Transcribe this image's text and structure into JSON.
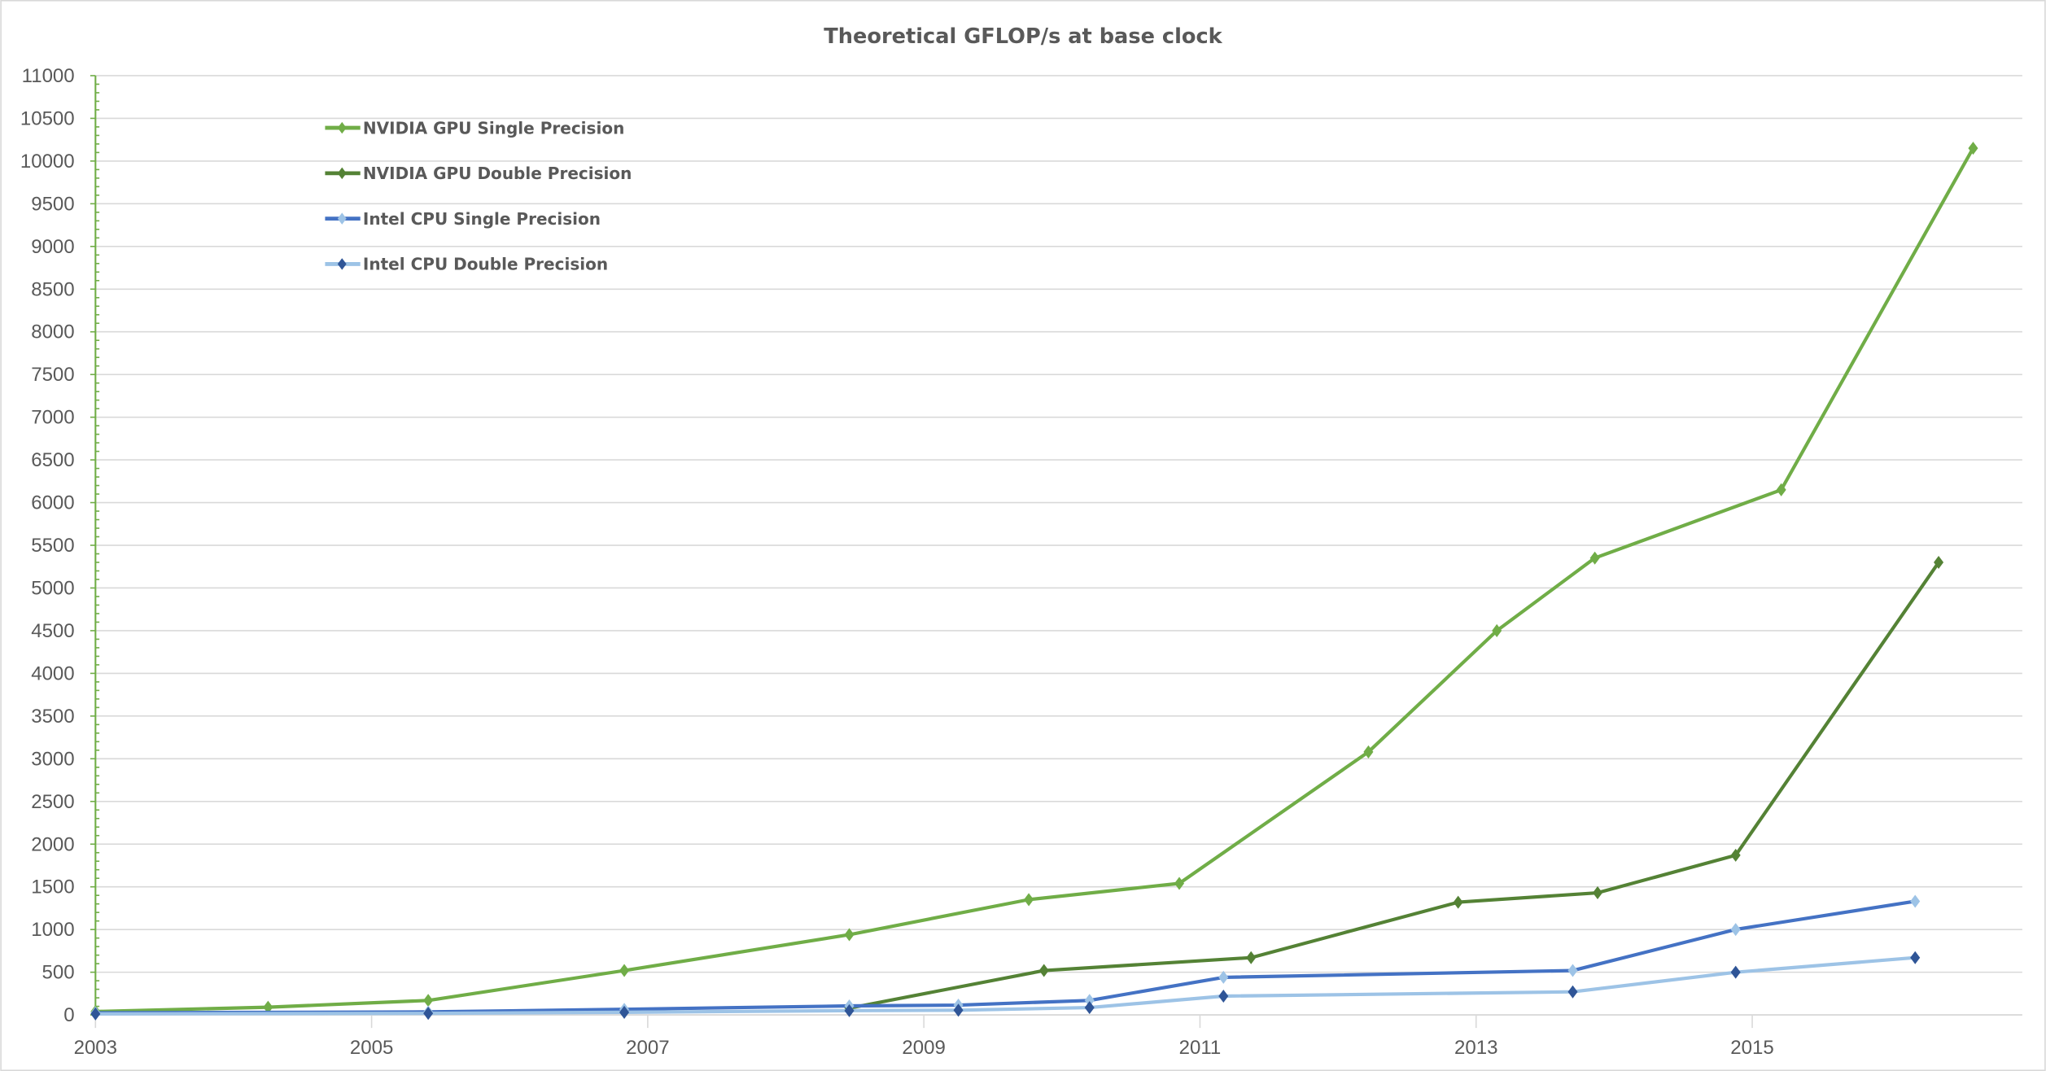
{
  "chart_data": {
    "type": "line",
    "title": "Theoretical GFLOP/s at base clock",
    "xlabel": "",
    "ylabel": "",
    "xlim": [
      2003,
      2016.9
    ],
    "ylim": [
      0,
      11000
    ],
    "x_ticks": [
      "2003",
      "2005",
      "2007",
      "2009",
      "2011",
      "2013",
      "2015"
    ],
    "y_ticks": [
      "0",
      "500",
      "1000",
      "1500",
      "2000",
      "2500",
      "3000",
      "3500",
      "4000",
      "4500",
      "5000",
      "5500",
      "6000",
      "6500",
      "7000",
      "7500",
      "8000",
      "8500",
      "9000",
      "9500",
      "10000",
      "10500",
      "11000"
    ],
    "grid": "horizontal",
    "legend": "top-left",
    "series": [
      {
        "name": "NVIDIA GPU Single Precision",
        "line_color": "#70ad47",
        "marker_color": "#70ad47",
        "x": [
          2003.0,
          2004.25,
          2005.41,
          2006.83,
          2008.46,
          2009.76,
          2010.85,
          2012.22,
          2013.15,
          2013.86,
          2015.21,
          2016.6
        ],
        "y": [
          40,
          90,
          170,
          520,
          940,
          1350,
          1540,
          3080,
          4500,
          5350,
          6150,
          10150
        ]
      },
      {
        "name": "NVIDIA GPU Double Precision",
        "line_color": "#548235",
        "marker_color": "#548235",
        "x": [
          2008.46,
          2009.87,
          2011.37,
          2012.87,
          2013.88,
          2014.88,
          2016.35
        ],
        "y": [
          80,
          520,
          670,
          1320,
          1430,
          1870,
          5300
        ]
      },
      {
        "name": "Intel CPU Single Precision",
        "line_color": "#4472c4",
        "marker_color": "#9dc3e6",
        "x": [
          2003.0,
          2005.41,
          2006.83,
          2008.46,
          2009.25,
          2010.2,
          2011.17,
          2013.7,
          2014.88,
          2016.18
        ],
        "y": [
          25,
          35,
          65,
          105,
          115,
          170,
          440,
          520,
          1000,
          1330
        ]
      },
      {
        "name": "Intel CPU Double Precision",
        "line_color": "#9dc3e6",
        "marker_color": "#2f5597",
        "x": [
          2003.0,
          2005.41,
          2006.83,
          2008.46,
          2009.25,
          2010.2,
          2011.17,
          2013.7,
          2014.88,
          2016.18
        ],
        "y": [
          12,
          18,
          30,
          50,
          55,
          85,
          220,
          270,
          500,
          670
        ]
      }
    ]
  }
}
